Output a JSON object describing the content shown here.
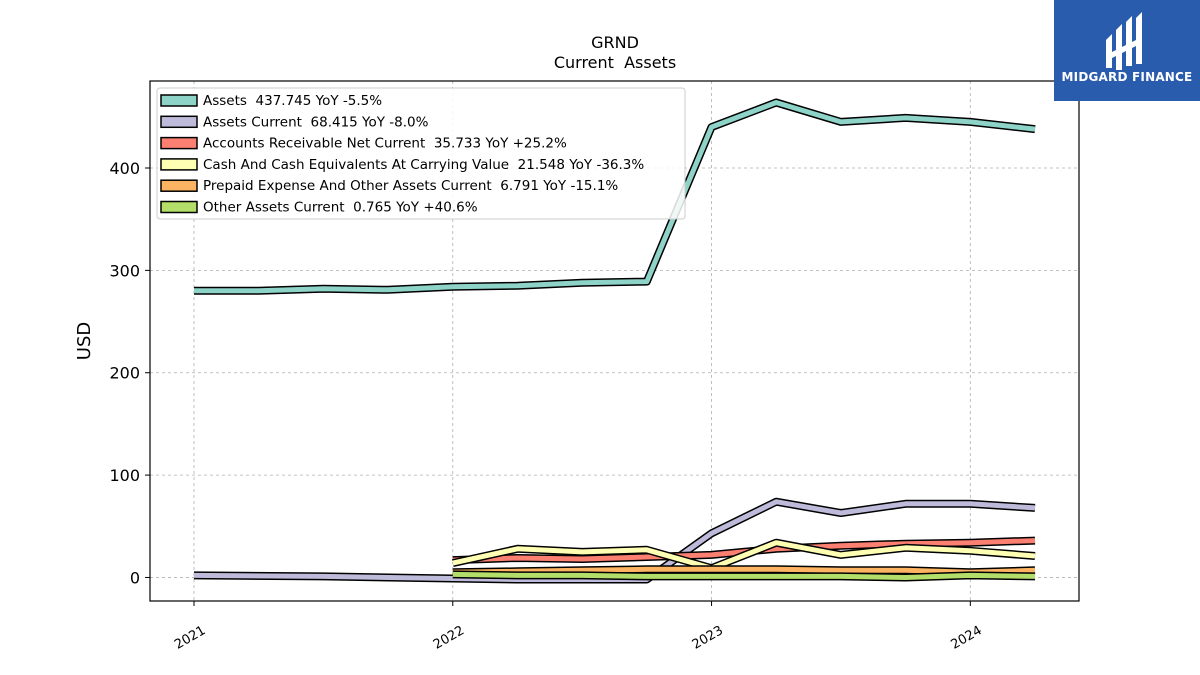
{
  "brand": {
    "name": "MIDGARD FINANCE",
    "bg": "#2a5cad"
  },
  "chart_data": {
    "type": "line",
    "title": "GRND",
    "subtitle": "Current  Assets",
    "xlabel": "",
    "ylabel": "USD",
    "ylim": [
      -23,
      485
    ],
    "xlim": [
      2020.83,
      2024.42
    ],
    "x_ticks": [
      2021,
      2022,
      2023,
      2024
    ],
    "x_tick_labels": [
      "2021",
      "2022",
      "2023",
      "2024"
    ],
    "y_ticks": [
      0,
      100,
      200,
      300,
      400
    ],
    "y_tick_labels": [
      "0",
      "100",
      "200",
      "300",
      "400"
    ],
    "grid": true,
    "legend_position": "top-left",
    "series": [
      {
        "name": "Assets",
        "legend": "Assets  437.745 YoY -5.5%",
        "color": "#8dd3c7",
        "x": [
          2021.0,
          2021.25,
          2021.5,
          2021.75,
          2022.0,
          2022.25,
          2022.5,
          2022.75,
          2023.0,
          2023.25,
          2023.5,
          2023.75,
          2024.0,
          2024.25
        ],
        "y": [
          280,
          280,
          282,
          281,
          284,
          285,
          288,
          289,
          440,
          464,
          445,
          449,
          445,
          438
        ]
      },
      {
        "name": "Assets Current",
        "legend": "Assets Current  68.415 YoY -8.0%",
        "color": "#bebada",
        "x": [
          2021.0,
          2021.5,
          2022.0,
          2022.25,
          2022.5,
          2022.75,
          2023.0,
          2023.25,
          2023.5,
          2023.75,
          2024.0,
          2024.25
        ],
        "y": [
          2,
          1,
          -1,
          -2,
          -2,
          -2,
          43,
          74,
          63,
          72,
          72,
          68
        ]
      },
      {
        "name": "Accounts Receivable Net Current",
        "legend": "Accounts Receivable Net Current  35.733 YoY +25.2%",
        "color": "#fb8072",
        "x": [
          2022.0,
          2022.25,
          2022.5,
          2022.75,
          2023.0,
          2023.25,
          2023.5,
          2023.75,
          2024.0,
          2024.25
        ],
        "y": [
          17,
          19,
          18,
          20,
          22,
          28,
          31,
          33,
          34,
          36
        ]
      },
      {
        "name": "Cash And Cash Equivalents At Carrying Value",
        "legend": "Cash And Cash Equivalents At Carrying Value  21.548 YoY -36.3%",
        "color": "#ffffb3",
        "x": [
          2022.0,
          2022.25,
          2022.5,
          2022.75,
          2023.0,
          2023.25,
          2023.5,
          2023.75,
          2024.0,
          2024.25
        ],
        "y": [
          14,
          28,
          25,
          27,
          9,
          34,
          22,
          29,
          26,
          21
        ]
      },
      {
        "name": "Prepaid Expense And Other Assets Current",
        "legend": "Prepaid Expense And Other Assets Current  6.791 YoY -15.1%",
        "color": "#fdb462",
        "x": [
          2022.0,
          2022.25,
          2022.5,
          2022.75,
          2023.0,
          2023.25,
          2023.5,
          2023.75,
          2024.0,
          2024.25
        ],
        "y": [
          5,
          6,
          7,
          8,
          8,
          8,
          7,
          7,
          5,
          7
        ]
      },
      {
        "name": "Other Assets Current",
        "legend": "Other Assets Current  0.765 YoY +40.6%",
        "color": "#b3de69",
        "x": [
          2022.0,
          2022.25,
          2022.5,
          2022.75,
          2023.0,
          2023.25,
          2023.5,
          2023.75,
          2024.0,
          2024.25
        ],
        "y": [
          3,
          2,
          2,
          1,
          1,
          1,
          1,
          0,
          2,
          1
        ]
      }
    ]
  }
}
